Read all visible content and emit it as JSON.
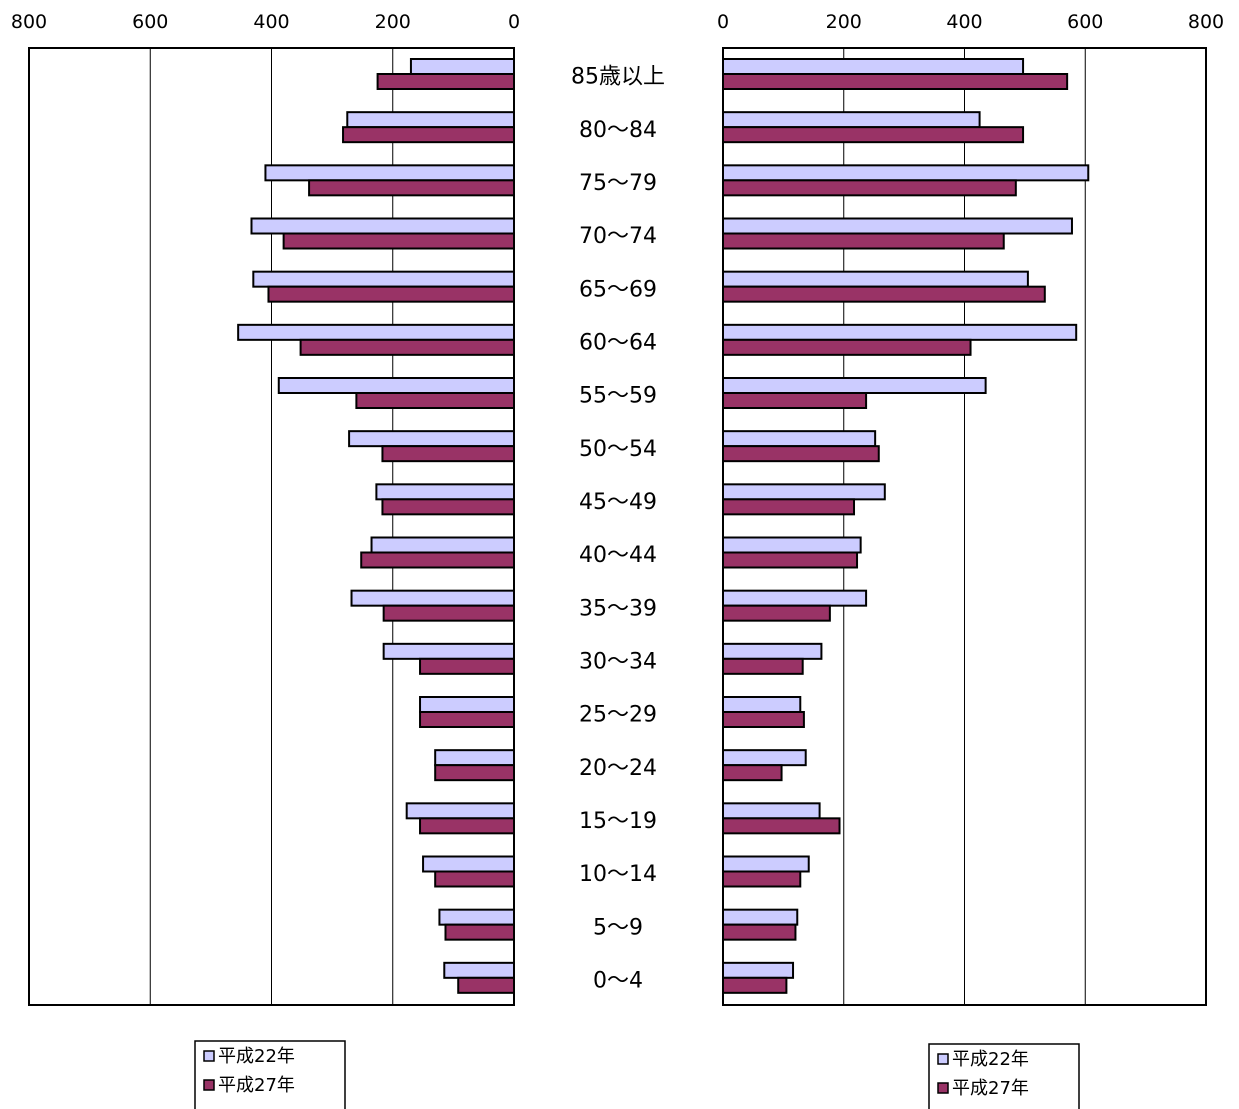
{
  "chart_data": {
    "type": "bar",
    "orientation": "horizontal",
    "layout": "population-pyramid",
    "categories": [
      "85歳以上",
      "80〜84",
      "75〜79",
      "70〜74",
      "65〜69",
      "60〜64",
      "55〜59",
      "50〜54",
      "45〜49",
      "40〜44",
      "35〜39",
      "30〜34",
      "25〜29",
      "20〜24",
      "15〜19",
      "10〜14",
      "5〜9",
      "0〜4"
    ],
    "xlim": [
      0,
      800
    ],
    "x_ticks": [
      "0",
      "200",
      "400",
      "600",
      "800"
    ],
    "grid": "vertical",
    "colors": {
      "平成22年": "#ccccff",
      "平成27年": "#993366"
    },
    "left": {
      "series": [
        {
          "name": "平成22年",
          "values": [
            170,
            275,
            410,
            433,
            430,
            455,
            388,
            272,
            227,
            235,
            268,
            215,
            155,
            130,
            177,
            150,
            123,
            115
          ]
        },
        {
          "name": "平成27年",
          "values": [
            225,
            282,
            338,
            380,
            405,
            352,
            260,
            217,
            217,
            252,
            215,
            155,
            155,
            130,
            155,
            130,
            113,
            92
          ]
        }
      ],
      "legend": [
        "平成22年",
        "平成27年"
      ]
    },
    "right": {
      "series": [
        {
          "name": "平成22年",
          "values": [
            497,
            425,
            605,
            578,
            505,
            585,
            435,
            252,
            268,
            228,
            237,
            163,
            128,
            137,
            160,
            142,
            123,
            116
          ]
        },
        {
          "name": "平成27年",
          "values": [
            570,
            497,
            485,
            465,
            533,
            410,
            237,
            258,
            217,
            222,
            177,
            132,
            134,
            97,
            193,
            128,
            120,
            105
          ]
        }
      ],
      "legend": [
        "平成22年",
        "平成27年"
      ]
    }
  }
}
